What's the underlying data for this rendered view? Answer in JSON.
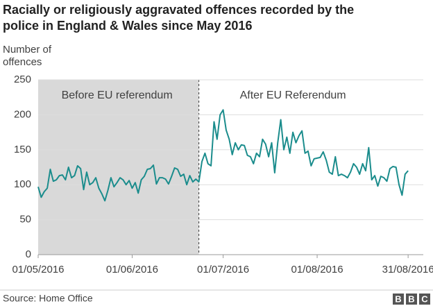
{
  "chart_data": {
    "type": "line",
    "title": [
      "Racially or religiously aggravated offences recorded by the",
      "police in England & Wales since May 2016"
    ],
    "y_label": [
      "Number of",
      "offences"
    ],
    "source": "Source: Home Office",
    "logo": [
      "B",
      "B",
      "C"
    ],
    "annotations": [
      {
        "text": "Before EU referendum",
        "x": "2016-05-27"
      },
      {
        "text": "After EU Referendum",
        "x": "2016-07-24"
      }
    ],
    "shade": {
      "from": "2016-05-01",
      "to": "2016-06-23",
      "color": "#d9d9d9"
    },
    "x": [
      "2016-05-01",
      "2016-05-02",
      "2016-05-03",
      "2016-05-04",
      "2016-05-05",
      "2016-05-06",
      "2016-05-07",
      "2016-05-08",
      "2016-05-09",
      "2016-05-10",
      "2016-05-11",
      "2016-05-12",
      "2016-05-13",
      "2016-05-14",
      "2016-05-15",
      "2016-05-16",
      "2016-05-17",
      "2016-05-18",
      "2016-05-19",
      "2016-05-20",
      "2016-05-21",
      "2016-05-22",
      "2016-05-23",
      "2016-05-24",
      "2016-05-25",
      "2016-05-26",
      "2016-05-27",
      "2016-05-28",
      "2016-05-29",
      "2016-05-30",
      "2016-05-31",
      "2016-06-01",
      "2016-06-02",
      "2016-06-03",
      "2016-06-04",
      "2016-06-05",
      "2016-06-06",
      "2016-06-07",
      "2016-06-08",
      "2016-06-09",
      "2016-06-10",
      "2016-06-11",
      "2016-06-12",
      "2016-06-13",
      "2016-06-14",
      "2016-06-15",
      "2016-06-16",
      "2016-06-17",
      "2016-06-18",
      "2016-06-19",
      "2016-06-20",
      "2016-06-21",
      "2016-06-22",
      "2016-06-23",
      "2016-06-24",
      "2016-06-25",
      "2016-06-26",
      "2016-06-27",
      "2016-06-28",
      "2016-06-29",
      "2016-06-30",
      "2016-07-01",
      "2016-07-02",
      "2016-07-03",
      "2016-07-04",
      "2016-07-05",
      "2016-07-06",
      "2016-07-07",
      "2016-07-08",
      "2016-07-09",
      "2016-07-10",
      "2016-07-11",
      "2016-07-12",
      "2016-07-13",
      "2016-07-14",
      "2016-07-15",
      "2016-07-16",
      "2016-07-17",
      "2016-07-18",
      "2016-07-19",
      "2016-07-20",
      "2016-07-21",
      "2016-07-22",
      "2016-07-23",
      "2016-07-24",
      "2016-07-25",
      "2016-07-26",
      "2016-07-27",
      "2016-07-28",
      "2016-07-29",
      "2016-07-30",
      "2016-07-31",
      "2016-08-01",
      "2016-08-02",
      "2016-08-03",
      "2016-08-04",
      "2016-08-05",
      "2016-08-06",
      "2016-08-07",
      "2016-08-08",
      "2016-08-09",
      "2016-08-10",
      "2016-08-11",
      "2016-08-12",
      "2016-08-13",
      "2016-08-14",
      "2016-08-15",
      "2016-08-16",
      "2016-08-17",
      "2016-08-18",
      "2016-08-19",
      "2016-08-20",
      "2016-08-21",
      "2016-08-22",
      "2016-08-23",
      "2016-08-24",
      "2016-08-25",
      "2016-08-26",
      "2016-08-27",
      "2016-08-28",
      "2016-08-29",
      "2016-08-30",
      "2016-08-31"
    ],
    "series": [
      {
        "name": "Offences",
        "color": "#1a8c8c",
        "values": [
          97,
          82,
          90,
          95,
          122,
          105,
          107,
          113,
          114,
          107,
          125,
          110,
          113,
          127,
          123,
          93,
          118,
          100,
          103,
          110,
          95,
          87,
          77,
          92,
          110,
          97,
          103,
          110,
          107,
          100,
          106,
          95,
          103,
          88,
          107,
          112,
          122,
          123,
          128,
          101,
          110,
          110,
          108,
          101,
          112,
          124,
          122,
          112,
          115,
          100,
          113,
          104,
          108,
          104,
          133,
          145,
          130,
          127,
          190,
          165,
          200,
          207,
          178,
          165,
          143,
          160,
          150,
          157,
          156,
          142,
          140,
          130,
          145,
          140,
          165,
          158,
          140,
          160,
          117,
          160,
          193,
          150,
          168,
          145,
          175,
          160,
          170,
          177,
          145,
          148,
          127,
          137,
          138,
          139,
          147,
          135,
          118,
          115,
          140,
          113,
          115,
          113,
          110,
          118,
          130,
          125,
          115,
          130,
          120,
          153,
          107,
          113,
          98,
          112,
          110,
          105,
          123,
          126,
          125,
          100,
          85,
          115,
          120
        ]
      }
    ],
    "xlim": [
      "2016-05-01",
      "2016-09-05"
    ],
    "xticks": [
      {
        "value": "2016-05-01",
        "label": "01/05/2016"
      },
      {
        "value": "2016-06-01",
        "label": "01/06/2016"
      },
      {
        "value": "2016-07-01",
        "label": "01/07/2016"
      },
      {
        "value": "2016-08-01",
        "label": "01/08/2016"
      },
      {
        "value": "2016-08-31",
        "label": "31/08/2016"
      }
    ],
    "ylim": [
      0,
      250
    ],
    "yticks": [
      0,
      50,
      100,
      150,
      200,
      250
    ],
    "grid": true
  }
}
